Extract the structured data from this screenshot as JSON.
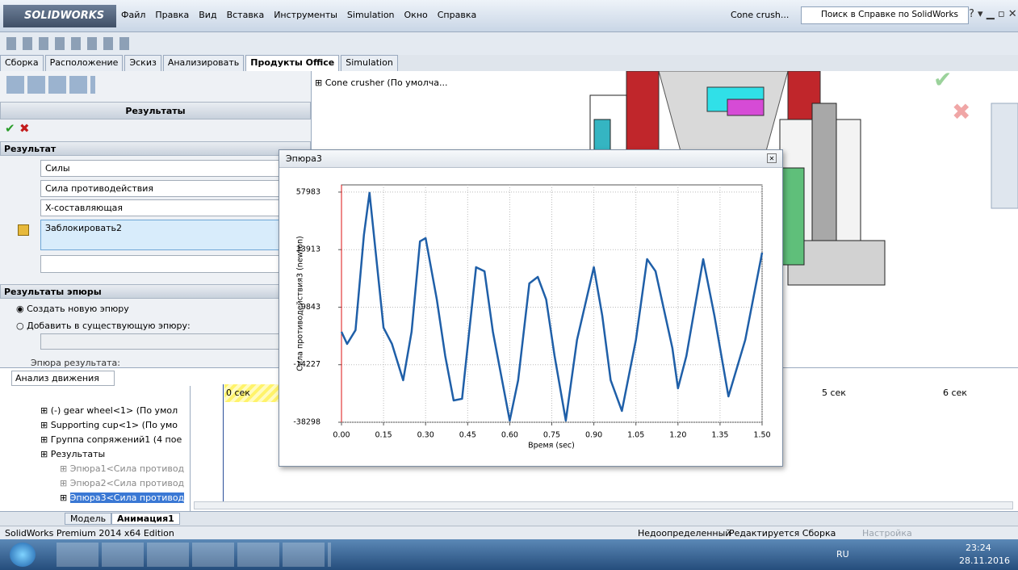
{
  "title_bar": {
    "logo": "SOLIDWORKS",
    "menu": [
      "Файл",
      "Правка",
      "Вид",
      "Вставка",
      "Инструменты",
      "Simulation",
      "Окно",
      "Справка"
    ],
    "document": "Cone crush...",
    "search": "Поиск в Справке по SolidWorks"
  },
  "tabs": [
    "Сборка",
    "Расположение",
    "Эскиз",
    "Анализировать",
    "Продукты Office",
    "Simulation"
  ],
  "property_manager": {
    "title": "Результаты",
    "section1": "Результат",
    "fields": [
      "Силы",
      "Сила противодействия",
      "X-составляющая"
    ],
    "selection": "Заблокировать2",
    "section2": "Результаты эпюры",
    "options": [
      "Создать новую эпюру",
      "Добавить в существующую эпюру:"
    ],
    "plot_label": "Эпюра результата:"
  },
  "tree_root": "Cone crusher  (По умолча...",
  "motion": {
    "study": "Анализ движения",
    "items": [
      "(-) gear wheel<1> (По умол",
      "Supporting cup<1> (По умо",
      "Группа сопряжений1 (4 пое",
      "Результаты",
      "Эпюра1<Сила противод",
      "Эпюра2<Сила противод",
      "Эпюра3<Сила противод"
    ],
    "times": [
      "0 сек",
      "5 сек",
      "6 сек"
    ]
  },
  "bottom_tabs": [
    "Модель",
    "Анимация1"
  ],
  "status": {
    "edition": "SolidWorks Premium 2014 x64 Edition",
    "state": "Недоопределенный",
    "mode": "Редактируется Сборка",
    "settings": "Настройка"
  },
  "taskbar": {
    "lang": "RU",
    "time": "23:24",
    "date": "28.11.2016"
  },
  "plot_window": {
    "title": "Эпюра3"
  },
  "chart_data": {
    "type": "line",
    "xlabel": "Время (sec)",
    "ylabel": "Сила противодействия3 (newton)",
    "x": [
      0.0,
      0.02,
      0.05,
      0.08,
      0.1,
      0.15,
      0.18,
      0.22,
      0.25,
      0.28,
      0.3,
      0.34,
      0.37,
      0.4,
      0.43,
      0.48,
      0.51,
      0.54,
      0.6,
      0.63,
      0.67,
      0.7,
      0.73,
      0.76,
      0.8,
      0.84,
      0.9,
      0.93,
      0.96,
      1.0,
      1.05,
      1.09,
      1.12,
      1.18,
      1.2,
      1.23,
      1.29,
      1.33,
      1.38,
      1.44,
      1.5
    ],
    "series": [
      {
        "color": "#1f5fa8",
        "values": [
          -460,
          -5530,
          220,
          40080,
          57650,
          1230,
          -5530,
          -20720,
          -460,
          37380,
          38730,
          13060,
          -10590,
          -29170,
          -28490,
          26570,
          24880,
          -460,
          -37610,
          -20730,
          19810,
          22510,
          13060,
          -10590,
          -37610,
          -3830,
          26570,
          6300,
          -20730,
          -33560,
          -3830,
          29940,
          24880,
          -7210,
          -24100,
          -10590,
          29940,
          6300,
          -27480,
          -3830,
          32650
        ]
      }
    ],
    "xlim": [
      0,
      1.5
    ],
    "xticks": [
      {
        "value": 0,
        "label": "0.00"
      },
      {
        "value": 0.15,
        "label": "0.15"
      },
      {
        "value": 0.3,
        "label": "0.30"
      },
      {
        "value": 0.45,
        "label": "0.45"
      },
      {
        "value": 0.6,
        "label": "0.60"
      },
      {
        "value": 0.75,
        "label": "0.75"
      },
      {
        "value": 0.9,
        "label": "0.90"
      },
      {
        "value": 1.05,
        "label": "1.05"
      },
      {
        "value": 1.2,
        "label": "1.20"
      },
      {
        "value": 1.35,
        "label": "1.35"
      },
      {
        "value": 1.5,
        "label": "1.50"
      }
    ],
    "ylim": [
      -38298,
      61000
    ],
    "yticks": [
      57983,
      33913,
      9843,
      -14227,
      -38298
    ],
    "grid": true
  }
}
